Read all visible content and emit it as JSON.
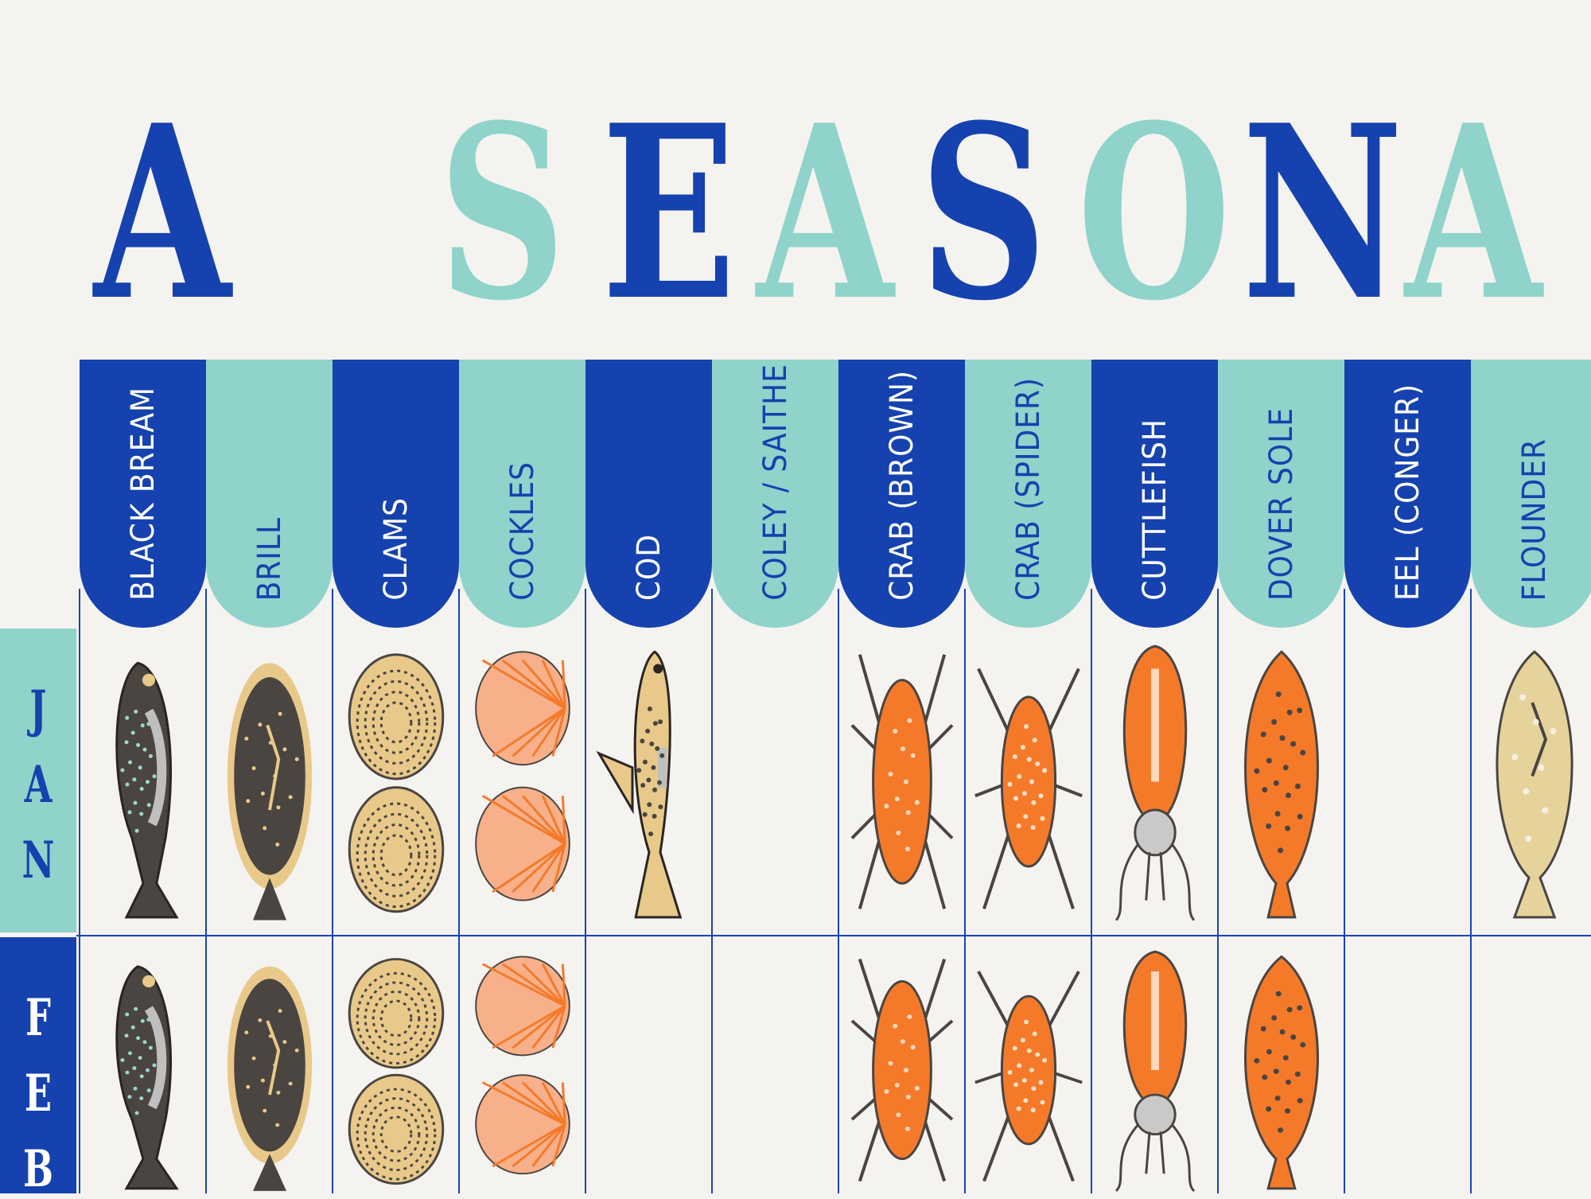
{
  "poster": {
    "title_letters": [
      {
        "char": "A",
        "color": "#1542ae"
      },
      {
        "char": "S",
        "color": "#8fd3cb"
      },
      {
        "char": "E",
        "color": "#1542ae"
      },
      {
        "char": "A",
        "color": "#8fd3cb"
      },
      {
        "char": "S",
        "color": "#1542ae"
      },
      {
        "char": "O",
        "color": "#8fd3cb"
      },
      {
        "char": "N",
        "color": "#1542ae"
      },
      {
        "char": "A",
        "color": "#8fd3cb"
      }
    ],
    "columns": [
      {
        "label": "BLACK BREAM",
        "tone": "dark"
      },
      {
        "label": "BRILL",
        "tone": "light"
      },
      {
        "label": "CLAMS",
        "tone": "dark"
      },
      {
        "label": "COCKLES",
        "tone": "light"
      },
      {
        "label": "COD",
        "tone": "dark"
      },
      {
        "label": "COLEY / SAITHE",
        "tone": "light"
      },
      {
        "label": "CRAB (BROWN)",
        "tone": "dark"
      },
      {
        "label": "CRAB (SPIDER)",
        "tone": "light"
      },
      {
        "label": "CUTTLEFISH",
        "tone": "dark"
      },
      {
        "label": "DOVER SOLE",
        "tone": "light"
      },
      {
        "label": "EEL (CONGER)",
        "tone": "dark"
      },
      {
        "label": "FLOUNDER",
        "tone": "light"
      }
    ],
    "months": [
      {
        "label": "JAN",
        "letters": [
          "J",
          "A",
          "N"
        ],
        "tone": "light"
      },
      {
        "label": "FEB",
        "letters": [
          "F",
          "E",
          "B"
        ],
        "tone": "dark"
      }
    ],
    "in_season": {
      "JAN": [
        "bream-icon",
        "flatfish-icon",
        "clam-icon",
        "cockle-icon",
        "cod-icon",
        null,
        "brown-crab-icon",
        "spider-crab-icon",
        "cuttlefish-icon",
        "dover-sole-icon",
        null,
        "flounder-icon"
      ],
      "FEB": [
        "bream-icon",
        "flatfish-icon",
        "clam-icon",
        "cockle-icon",
        null,
        null,
        "brown-crab-icon",
        "spider-crab-icon",
        "cuttlefish-icon",
        "dover-sole-icon",
        null,
        null
      ]
    },
    "colors": {
      "dark_blue": "#1542ae",
      "light_teal": "#8fd3cb",
      "paper": "#f4f3f0",
      "orange": "#f47a2a",
      "charcoal": "#4a4541",
      "sand": "#e8c98a"
    }
  }
}
